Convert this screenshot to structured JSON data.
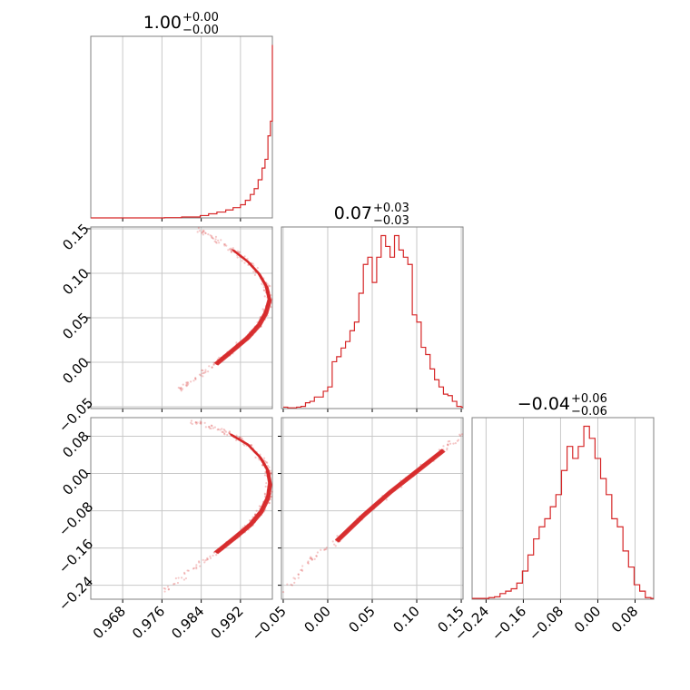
{
  "chart_data": {
    "type": "corner",
    "color": "#d62728",
    "panel_titles": [
      {
        "value": "1.00",
        "plus": "+0.00",
        "minus": "−0.00"
      },
      {
        "value": "0.07",
        "plus": "+0.03",
        "minus": "−0.03"
      },
      {
        "value": "−0.04",
        "plus": "+0.06",
        "minus": "−0.06"
      }
    ],
    "axes": {
      "p1": {
        "range": [
          0.9615,
          0.9985
        ],
        "ticks": [
          0.968,
          0.976,
          0.984,
          0.992
        ],
        "tick_labels": [
          "0.968",
          "0.976",
          "0.984",
          "0.992"
        ]
      },
      "p2": {
        "range": [
          -0.052,
          0.152
        ],
        "ticks": [
          -0.05,
          0.0,
          0.05,
          0.1,
          0.15
        ],
        "tick_labels": [
          "−0.05",
          "0.00",
          "0.05",
          "0.10",
          "0.15"
        ]
      },
      "p3": {
        "range": [
          -0.27,
          0.12
        ],
        "ticks": [
          -0.24,
          -0.16,
          -0.08,
          0.0,
          0.08
        ],
        "tick_labels": [
          "−0.24",
          "−0.16",
          "−0.08",
          "0.00",
          "0.08"
        ]
      }
    },
    "hist_p1": {
      "x": [
        0.9615,
        0.9765,
        0.98,
        0.9838,
        0.9855,
        0.9872,
        0.989,
        0.9905,
        0.992,
        0.993,
        0.994,
        0.9948,
        0.9956,
        0.9964,
        0.997,
        0.9976,
        0.9981,
        0.9985
      ],
      "values": [
        0,
        1,
        3,
        8,
        14,
        20,
        27,
        35,
        45,
        60,
        80,
        100,
        130,
        170,
        200,
        280,
        330,
        590
      ]
    },
    "hist_p2": {
      "x": [
        -0.05,
        -0.045,
        -0.04,
        -0.035,
        -0.03,
        -0.025,
        -0.02,
        -0.015,
        -0.01,
        -0.005,
        0.0,
        0.005,
        0.01,
        0.015,
        0.02,
        0.025,
        0.03,
        0.035,
        0.04,
        0.045,
        0.05,
        0.055,
        0.06,
        0.065,
        0.07,
        0.075,
        0.08,
        0.085,
        0.09,
        0.095,
        0.1,
        0.105,
        0.11,
        0.115,
        0.12,
        0.125,
        0.13,
        0.135,
        0.14,
        0.145,
        0.15
      ],
      "values": [
        2,
        1,
        1,
        2,
        3,
        8,
        10,
        16,
        16,
        24,
        30,
        65,
        72,
        84,
        93,
        108,
        120,
        160,
        200,
        210,
        175,
        210,
        240,
        225,
        210,
        240,
        220,
        210,
        200,
        130,
        120,
        85,
        75,
        55,
        40,
        30,
        20,
        18,
        10,
        3,
        2
      ]
    },
    "hist_p3": {
      "x": [
        -0.27,
        -0.258,
        -0.246,
        -0.234,
        -0.222,
        -0.21,
        -0.198,
        -0.186,
        -0.174,
        -0.162,
        -0.15,
        -0.138,
        -0.126,
        -0.114,
        -0.102,
        -0.09,
        -0.078,
        -0.066,
        -0.054,
        -0.042,
        -0.03,
        -0.018,
        -0.006,
        0.006,
        0.018,
        0.03,
        0.042,
        0.054,
        0.066,
        0.078,
        0.09,
        0.102,
        0.114
      ],
      "values": [
        1,
        1,
        1,
        2,
        3,
        7,
        10,
        13,
        20,
        35,
        55,
        75,
        90,
        100,
        115,
        130,
        160,
        190,
        175,
        190,
        215,
        200,
        175,
        150,
        130,
        100,
        90,
        60,
        40,
        18,
        10,
        2,
        1
      ]
    },
    "curve_p1_p2": [
      [
        0.979,
        -0.032
      ],
      [
        0.983,
        -0.018
      ],
      [
        0.987,
        -0.002
      ],
      [
        0.9905,
        0.014
      ],
      [
        0.9935,
        0.028
      ],
      [
        0.9958,
        0.042
      ],
      [
        0.9972,
        0.056
      ],
      [
        0.9979,
        0.07
      ],
      [
        0.9973,
        0.085
      ],
      [
        0.9957,
        0.1
      ],
      [
        0.9935,
        0.113
      ],
      [
        0.9905,
        0.126
      ],
      [
        0.987,
        0.138
      ],
      [
        0.983,
        0.15
      ]
    ],
    "curve_p2_p3": [
      [
        -0.05,
        -0.255
      ],
      [
        -0.02,
        -0.185
      ],
      [
        0.01,
        -0.145
      ],
      [
        0.04,
        -0.09
      ],
      [
        0.07,
        -0.04
      ],
      [
        0.1,
        0.005
      ],
      [
        0.13,
        0.05
      ],
      [
        0.15,
        0.085
      ]
    ],
    "curve_p1_p3": [
      [
        0.9765,
        -0.255
      ],
      [
        0.982,
        -0.205
      ],
      [
        0.987,
        -0.17
      ],
      [
        0.9908,
        -0.138
      ],
      [
        0.994,
        -0.11
      ],
      [
        0.9962,
        -0.082
      ],
      [
        0.9976,
        -0.052
      ],
      [
        0.998,
        -0.022
      ],
      [
        0.9975,
        0.008
      ],
      [
        0.996,
        0.035
      ],
      [
        0.9935,
        0.062
      ],
      [
        0.99,
        0.084
      ],
      [
        0.986,
        0.1
      ],
      [
        0.982,
        0.112
      ]
    ],
    "grid": true
  }
}
